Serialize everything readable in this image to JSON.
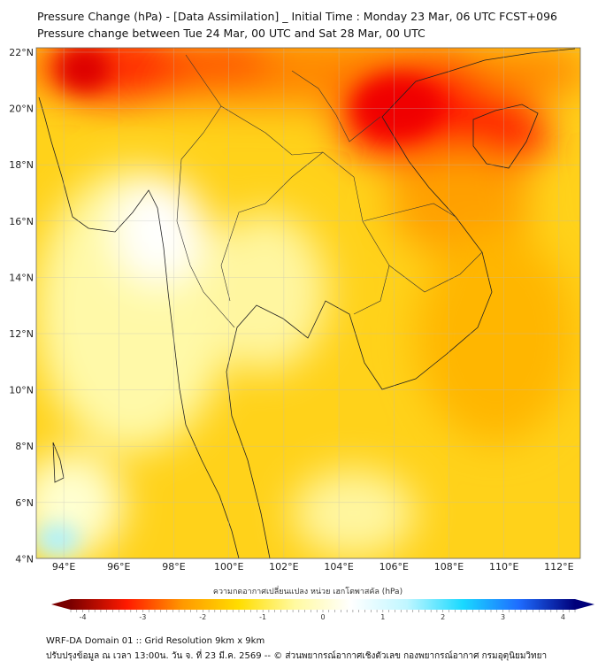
{
  "title": {
    "line1": "Pressure Change (hPa) - [Data Assimilation] _ Initial Time : Monday 23 Mar, 06 UTC FCST+096",
    "line2": "Pressure change between Tue 24 Mar, 00 UTC and Sat 28 Mar, 00 UTC"
  },
  "map": {
    "lon_labels": [
      "94°E",
      "96°E",
      "98°E",
      "100°E",
      "102°E",
      "104°E",
      "106°E",
      "108°E",
      "110°E",
      "112°E"
    ],
    "lat_labels": [
      "22°N",
      "20°N",
      "18°N",
      "16°N",
      "14°N",
      "12°N",
      "10°N",
      "8°N",
      "6°N",
      "4°N"
    ],
    "lon_values": [
      94,
      96,
      98,
      100,
      102,
      104,
      106,
      108,
      110,
      112
    ],
    "lat_values": [
      22,
      20,
      18,
      16,
      14,
      12,
      10,
      8,
      6,
      4
    ]
  },
  "colorbar": {
    "label": "ความกดอากาศเปลี่ยนแปลง หน่วย เฮกโตพาสคัล (hPa)",
    "ticks": [
      "-4",
      "-3",
      "-2",
      "-1",
      "0",
      "1",
      "2",
      "3",
      "4"
    ],
    "tick_values": [
      -4,
      -3,
      -2,
      -1,
      0,
      1,
      2,
      3,
      4
    ],
    "range": [
      -4.2,
      4.2
    ],
    "colors": [
      "#7a0000",
      "#ff1a00",
      "#ff9900",
      "#ffdd00",
      "#fffaa0",
      "#ffffff",
      "#bff6ff",
      "#19d9ff",
      "#1e6cff",
      "#00007a"
    ]
  },
  "footer": {
    "line1": "WRF-DA Domain 01 :: Grid Resolution 9km x 9km",
    "line2": "ปรับปรุงข้อมูล ณ เวลา 13:00น. วัน จ. ที่ 23 มี.ค. 2569 -- © ส่วนพยากรณ์อากาศเชิงตัวเลข กองพยากรณ์อากาศ กรมอุตุนิยมวิทยา"
  }
}
